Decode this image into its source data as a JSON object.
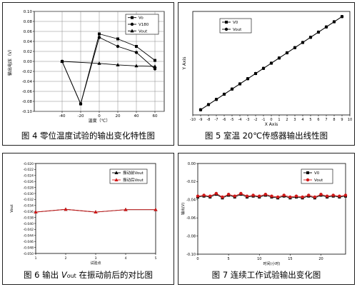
{
  "chart_data": [
    {
      "type": "line",
      "caption": "图 4 零位温度试验的输出变化特性图",
      "xlabel": "温度（℃）",
      "ylabel": "输出电压（V）",
      "xlim": [
        -70,
        70
      ],
      "ylim": [
        -0.1,
        0.1
      ],
      "xticks": [
        -40,
        -20,
        0,
        20,
        40,
        60
      ],
      "yticks": [
        0.1,
        0.08,
        0.06,
        0.04,
        0.02,
        0.0,
        -0.02,
        -0.04,
        -0.06,
        -0.08,
        -0.1
      ],
      "yticklabels": [
        "0.10",
        "0.08",
        "0.06",
        "0.04",
        "0.02",
        "0.00",
        "-0.02",
        "-0.04",
        "-0.06",
        "-0.08",
        "-0.10"
      ],
      "grid": true,
      "legend": "top-right",
      "series": [
        {
          "name": "Vo",
          "marker": "square",
          "x": [
            -40,
            -20,
            0,
            20,
            40,
            60
          ],
          "y": [
            0.0,
            -0.085,
            0.055,
            0.045,
            0.03,
            0.002
          ]
        },
        {
          "name": "V180",
          "marker": "circle",
          "x": [
            -40,
            -20,
            0,
            20,
            40,
            60
          ],
          "y": [
            0.0,
            -0.085,
            0.048,
            0.03,
            0.018,
            -0.015
          ]
        },
        {
          "name": "Vout",
          "marker": "triangle",
          "x": [
            -40,
            0,
            20,
            40,
            60
          ],
          "y": [
            0.0,
            -0.004,
            -0.007,
            -0.009,
            -0.01
          ]
        }
      ]
    },
    {
      "type": "line",
      "caption": "图 5 室温 20℃传感器输出线性图",
      "xlabel": "X Axis",
      "ylabel": "Y Axis",
      "xlim": [
        -10,
        10
      ],
      "ylim": [
        -10,
        10
      ],
      "xticks": [
        -10,
        -9,
        -8,
        -7,
        -6,
        -5,
        -4,
        -3,
        -2,
        -1,
        0,
        1,
        2,
        3,
        4,
        5,
        6,
        7,
        8,
        9,
        10
      ],
      "grid": false,
      "legend": "top-left",
      "series": [
        {
          "name": "V0",
          "marker": "square",
          "x": [
            -9,
            -8,
            -7,
            -6,
            -5,
            -4,
            -3,
            -2,
            -1,
            0,
            1,
            2,
            3,
            4,
            5,
            6,
            7,
            8,
            9
          ],
          "y": [
            -9,
            -8,
            -7,
            -6,
            -5,
            -4,
            -3,
            -2,
            -1,
            0,
            1,
            2,
            3,
            4,
            5,
            6,
            7,
            8,
            9
          ]
        },
        {
          "name": "Vout",
          "marker": "circle",
          "x": [
            -9,
            -8,
            -7,
            -6,
            -5,
            -4,
            -3,
            -2,
            -1,
            0,
            1,
            2,
            3,
            4,
            5,
            6,
            7,
            8,
            9
          ],
          "y": [
            -9,
            -8,
            -7,
            -6,
            -5,
            -4,
            -3,
            -2,
            -1,
            0,
            1,
            2,
            3,
            4,
            5,
            6,
            7,
            8,
            9
          ]
        }
      ]
    },
    {
      "type": "line",
      "caption": "图 6 输出",
      "caption_var": "V",
      "caption_sub": "out",
      "caption_tail": "在振动前后的对比图",
      "xlabel": "试验点",
      "ylabel": "Vout",
      "xlim": [
        1,
        5
      ],
      "ylim": [
        -0.05,
        -0.02
      ],
      "xticks": [
        1,
        2,
        3,
        4,
        5
      ],
      "yticks": [
        -0.02,
        -0.022,
        -0.024,
        -0.026,
        -0.028,
        -0.03,
        -0.032,
        -0.034,
        -0.036,
        -0.038,
        -0.04,
        -0.042,
        -0.044,
        -0.046,
        -0.048,
        -0.05
      ],
      "yticklabels": [
        "-0.020",
        "-0.022",
        "-0.024",
        "-0.026",
        "-0.028",
        "-0.030",
        "-0.032",
        "-0.034",
        "-0.036",
        "-0.038",
        "-0.040",
        "-0.042",
        "-0.044",
        "-0.046",
        "-0.048",
        "-0.050"
      ],
      "grid": false,
      "legend": "top-right",
      "series": [
        {
          "name": "振动前Vout",
          "marker": "triangle",
          "color": "#000000",
          "x": [
            1,
            2,
            3,
            4,
            5
          ],
          "y": [
            -0.0362,
            -0.0353,
            -0.0362,
            -0.0354,
            -0.0354
          ]
        },
        {
          "name": "振动后Vout",
          "marker": "triangle",
          "color": "#d01818",
          "x": [
            1,
            2,
            3,
            4,
            5
          ],
          "y": [
            -0.0362,
            -0.0353,
            -0.0362,
            -0.0354,
            -0.0354
          ]
        }
      ]
    },
    {
      "type": "line",
      "caption": "图 7 连续工作试验输出变化图",
      "xlabel": "时间(小时)",
      "ylabel": "输出(V)",
      "xlim": [
        0,
        24
      ],
      "ylim": [
        -0.1,
        0.0
      ],
      "xticks": [
        0,
        5,
        10,
        15,
        20
      ],
      "yticks": [
        0.0,
        -0.02,
        -0.04,
        -0.06,
        -0.08,
        -0.1
      ],
      "yticklabels": [
        "0.00",
        "-0.02",
        "-0.04",
        "-0.06",
        "-0.08",
        "-0.10"
      ],
      "grid": false,
      "legend": "top-right",
      "series": [
        {
          "name": "V0",
          "marker": "square",
          "color": "#000000",
          "x": [
            0,
            1,
            2,
            3,
            4,
            5,
            6,
            7,
            8,
            9,
            10,
            11,
            12,
            13,
            14,
            15,
            16,
            17,
            18,
            19,
            20,
            21,
            22,
            23,
            24
          ],
          "y": [
            -0.037,
            -0.036,
            -0.037,
            -0.034,
            -0.038,
            -0.035,
            -0.037,
            -0.034,
            -0.037,
            -0.036,
            -0.037,
            -0.035,
            -0.037,
            -0.038,
            -0.036,
            -0.038,
            -0.037,
            -0.038,
            -0.036,
            -0.038,
            -0.035,
            -0.037,
            -0.036,
            -0.037,
            -0.036
          ]
        },
        {
          "name": "Vout",
          "marker": "circle",
          "color": "#d01818",
          "x": [
            0,
            1,
            2,
            3,
            4,
            5,
            6,
            7,
            8,
            9,
            10,
            11,
            12,
            13,
            14,
            15,
            16,
            17,
            18,
            19,
            20,
            21,
            22,
            23,
            24
          ],
          "y": [
            -0.036,
            -0.035,
            -0.036,
            -0.033,
            -0.037,
            -0.034,
            -0.036,
            -0.033,
            -0.036,
            -0.035,
            -0.036,
            -0.034,
            -0.036,
            -0.037,
            -0.035,
            -0.037,
            -0.036,
            -0.037,
            -0.035,
            -0.037,
            -0.034,
            -0.036,
            -0.035,
            -0.036,
            -0.035
          ]
        }
      ]
    }
  ]
}
